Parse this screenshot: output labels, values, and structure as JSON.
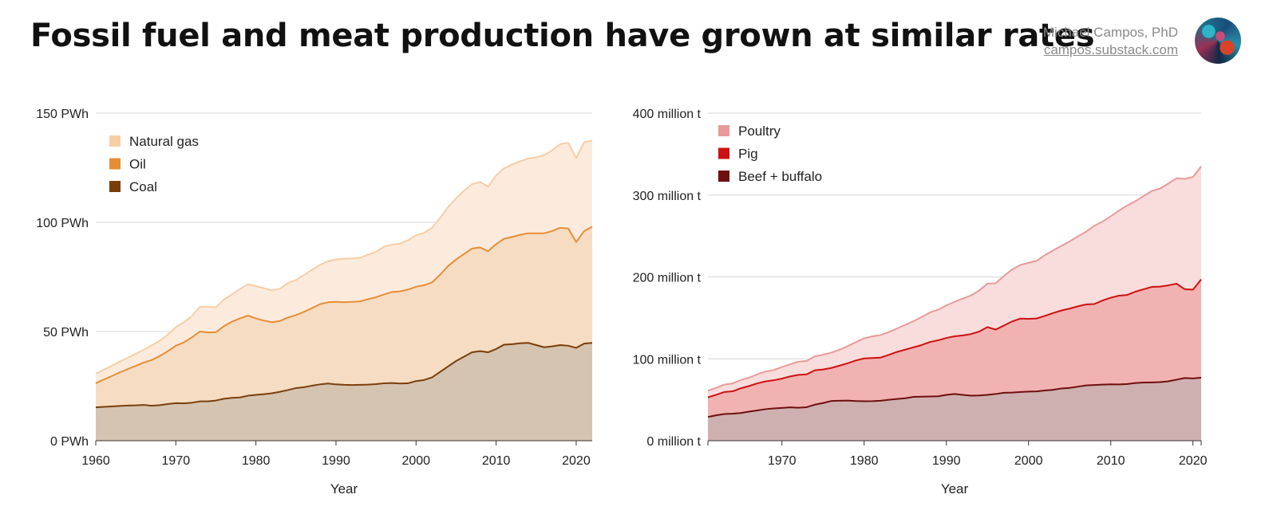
{
  "header": {
    "title": "Fossil fuel and meat production have grown at similar rates",
    "author": "Michael Campos, PhD",
    "site": "campos.substack.com"
  },
  "chart_data": [
    {
      "type": "area",
      "stacked": true,
      "xlabel": "Year",
      "ylabel": "",
      "ylim": [
        0,
        150
      ],
      "yticks": [
        0,
        50,
        100,
        150
      ],
      "ytick_labels": [
        "0 PWh",
        "50 PWh",
        "100 PWh",
        "150 PWh"
      ],
      "xlim": [
        1960,
        2022
      ],
      "xticks": [
        1960,
        1970,
        1980,
        1990,
        2000,
        2010,
        2020
      ],
      "grid": true,
      "legend_position": "top-left",
      "x": [
        1960,
        1961,
        1962,
        1963,
        1964,
        1965,
        1966,
        1967,
        1968,
        1969,
        1970,
        1971,
        1972,
        1973,
        1974,
        1975,
        1976,
        1977,
        1978,
        1979,
        1980,
        1981,
        1982,
        1983,
        1984,
        1985,
        1986,
        1987,
        1988,
        1989,
        1990,
        1991,
        1992,
        1993,
        1994,
        1995,
        1996,
        1997,
        1998,
        1999,
        2000,
        2001,
        2002,
        2003,
        2004,
        2005,
        2006,
        2007,
        2008,
        2009,
        2010,
        2011,
        2012,
        2013,
        2014,
        2015,
        2016,
        2017,
        2018,
        2019,
        2020,
        2021,
        2022
      ],
      "series": [
        {
          "name": "Coal",
          "color": "#7a3e0c",
          "fill": "#d5c4b0",
          "values": [
            15.3,
            15.5,
            15.7,
            15.9,
            16.1,
            16.2,
            16.4,
            16.0,
            16.3,
            16.8,
            17.2,
            17.1,
            17.4,
            18.0,
            18.0,
            18.4,
            19.2,
            19.6,
            19.8,
            20.6,
            21.0,
            21.3,
            21.7,
            22.4,
            23.2,
            24.1,
            24.5,
            25.2,
            25.8,
            26.2,
            25.8,
            25.6,
            25.5,
            25.6,
            25.7,
            25.9,
            26.3,
            26.4,
            26.2,
            26.3,
            27.3,
            27.8,
            29.0,
            31.5,
            34.0,
            36.5,
            38.5,
            40.5,
            41.0,
            40.5,
            42.0,
            44.0,
            44.2,
            44.6,
            44.8,
            43.8,
            42.8,
            43.2,
            43.8,
            43.5,
            42.5,
            44.5,
            44.8
          ]
        },
        {
          "name": "Oil",
          "color": "#e58e36",
          "fill": "#f5dcc2",
          "values": [
            26.3,
            28.0,
            29.6,
            31.3,
            32.8,
            34.3,
            35.8,
            37.0,
            38.8,
            41.0,
            43.5,
            45.0,
            47.3,
            50.0,
            49.6,
            49.7,
            52.4,
            54.5,
            56.0,
            57.3,
            56.0,
            55.0,
            54.3,
            54.8,
            56.4,
            57.5,
            59.0,
            60.7,
            62.5,
            63.4,
            63.6,
            63.4,
            63.6,
            63.8,
            64.8,
            65.7,
            67.0,
            68.1,
            68.4,
            69.2,
            70.5,
            71.2,
            72.5,
            76.0,
            80.0,
            83.0,
            85.5,
            88.0,
            88.5,
            86.8,
            90.0,
            92.5,
            93.3,
            94.3,
            95.0,
            95.0,
            95.0,
            96.0,
            97.5,
            97.2,
            91.0,
            96.0,
            98.0
          ]
        },
        {
          "name": "Natural gas",
          "color": "#f8cda4",
          "fill": "#fcebdd",
          "values": [
            30.7,
            32.5,
            34.3,
            36.2,
            38.0,
            39.8,
            41.8,
            43.6,
            45.8,
            48.6,
            52.0,
            54.3,
            57.0,
            61.4,
            61.3,
            61.1,
            64.6,
            67.0,
            69.4,
            71.7,
            70.8,
            69.8,
            68.8,
            69.6,
            72.2,
            73.6,
            75.8,
            78.2,
            80.5,
            82.2,
            83.0,
            83.4,
            83.5,
            83.8,
            85.2,
            86.5,
            88.9,
            89.8,
            90.3,
            91.8,
            94.1,
            95.2,
            97.5,
            102.0,
            107.0,
            111.0,
            114.5,
            117.5,
            118.5,
            116.3,
            121.5,
            124.8,
            126.5,
            128.0,
            129.2,
            129.8,
            130.8,
            133.0,
            135.8,
            136.4,
            129.5,
            136.7,
            137.5
          ]
        }
      ]
    },
    {
      "type": "area",
      "stacked": true,
      "xlabel": "Year",
      "ylabel": "",
      "ylim": [
        0,
        400
      ],
      "yticks": [
        0,
        100,
        200,
        300,
        400
      ],
      "ytick_labels": [
        "0 million t",
        "100 million t",
        "200 million t",
        "300 million t",
        "400 million t"
      ],
      "xlim": [
        1961,
        2021
      ],
      "xticks": [
        1970,
        1980,
        1990,
        2000,
        2010,
        2020
      ],
      "grid": true,
      "legend_position": "top-left",
      "x": [
        1961,
        1962,
        1963,
        1964,
        1965,
        1966,
        1967,
        1968,
        1969,
        1970,
        1971,
        1972,
        1973,
        1974,
        1975,
        1976,
        1977,
        1978,
        1979,
        1980,
        1981,
        1982,
        1983,
        1984,
        1985,
        1986,
        1987,
        1988,
        1989,
        1990,
        1991,
        1992,
        1993,
        1994,
        1995,
        1996,
        1997,
        1998,
        1999,
        2000,
        2001,
        2002,
        2003,
        2004,
        2005,
        2006,
        2007,
        2008,
        2009,
        2010,
        2011,
        2012,
        2013,
        2014,
        2015,
        2016,
        2017,
        2018,
        2019,
        2020,
        2021
      ],
      "series": [
        {
          "name": "Beef + buffalo",
          "color": "#6e0f0f",
          "fill": "#cfb0b0",
          "values": [
            29,
            31,
            32.6,
            33,
            33.8,
            35.5,
            37,
            38.5,
            39.4,
            40,
            40.8,
            40.3,
            40.9,
            44,
            46,
            48.5,
            48.8,
            49,
            48.4,
            48.2,
            48.3,
            48.8,
            50,
            51,
            51.8,
            53.5,
            53.8,
            54,
            54.3,
            56,
            57,
            56,
            55,
            55.2,
            56,
            57,
            58.5,
            58.8,
            59.5,
            60,
            60.2,
            61.3,
            62.2,
            63.8,
            64.5,
            66,
            67.5,
            68,
            68.5,
            68.8,
            68.7,
            69.2,
            70.4,
            71,
            71.2,
            71.5,
            72.5,
            74.5,
            76.5,
            76,
            77
          ]
        },
        {
          "name": "Pig",
          "color": "#cc1111",
          "fill": "#f1b2b2",
          "values": [
            53,
            56,
            59.5,
            60.3,
            64,
            66.8,
            70,
            72.4,
            73.8,
            75.8,
            78.5,
            80.4,
            81,
            86,
            87,
            88.8,
            91.6,
            94.6,
            98,
            100.5,
            101,
            101.5,
            104.8,
            108.4,
            111.2,
            114,
            116.8,
            120.5,
            122.6,
            125.5,
            127.5,
            128.6,
            130.2,
            133.3,
            138.7,
            135.7,
            140.6,
            145.6,
            149.1,
            148.8,
            149.3,
            152.5,
            155.9,
            159,
            161.3,
            164.1,
            166.4,
            166.9,
            171.2,
            174.6,
            177.1,
            178,
            182,
            185,
            187.8,
            188.2,
            189.7,
            191.8,
            185,
            184.4,
            197
          ]
        },
        {
          "name": "Poultry",
          "color": "#e89a9a",
          "fill": "#f9dcdc",
          "values": [
            61,
            64.5,
            68.5,
            70,
            74,
            77,
            81,
            84.5,
            86.3,
            90,
            93.4,
            96.5,
            97.5,
            103,
            105,
            107.5,
            111,
            115.5,
            120.4,
            125,
            127.5,
            129,
            132.7,
            137,
            141.5,
            146,
            151,
            156.6,
            160,
            165.2,
            169.6,
            173.5,
            177.4,
            183.4,
            191.9,
            192.2,
            201.1,
            209.1,
            214.6,
            217.3,
            219.8,
            226.6,
            232.5,
            238,
            243.4,
            249.5,
            255.3,
            262.5,
            267.6,
            274,
            281.1,
            287.2,
            292.5,
            298.8,
            305,
            307.9,
            314,
            320.6,
            319.8,
            322,
            335
          ]
        }
      ]
    }
  ]
}
